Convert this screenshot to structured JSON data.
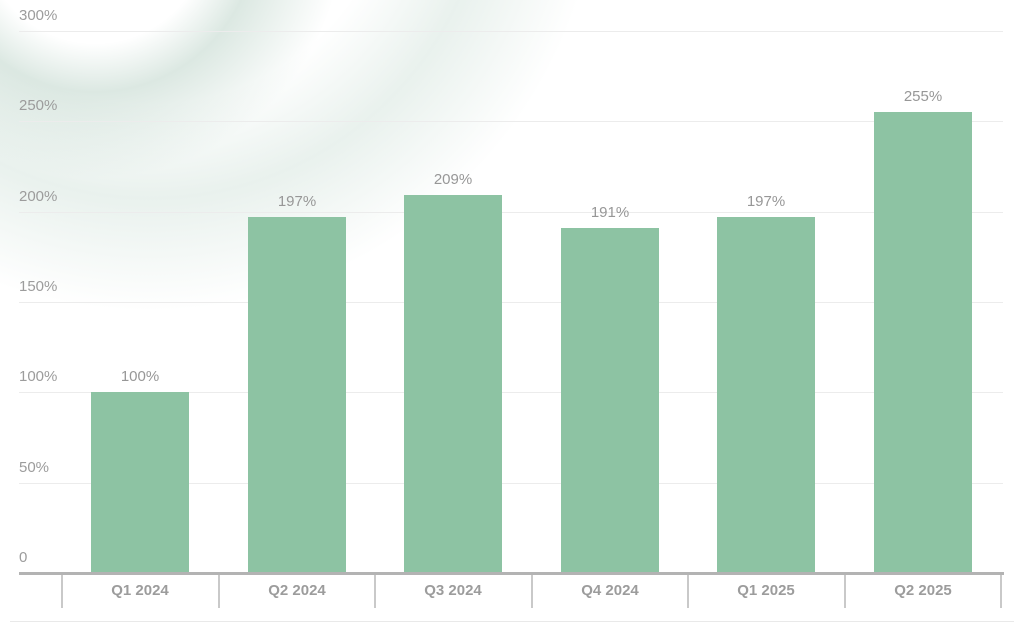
{
  "chart_data": {
    "type": "bar",
    "title": "",
    "xlabel": "",
    "ylabel": "",
    "categories": [
      "Q1 2024",
      "Q2 2024",
      "Q3 2024",
      "Q4 2024",
      "Q1 2025",
      "Q2 2025"
    ],
    "values": [
      100,
      197,
      209,
      191,
      197,
      255
    ],
    "bar_labels": [
      "100%",
      "197%",
      "209%",
      "191%",
      "197%",
      "255%"
    ],
    "y_ticks": [
      {
        "value": 0,
        "label": "0"
      },
      {
        "value": 50,
        "label": "50%"
      },
      {
        "value": 100,
        "label": "100%"
      },
      {
        "value": 150,
        "label": "150%"
      },
      {
        "value": 200,
        "label": "200%"
      },
      {
        "value": 250,
        "label": "250%"
      },
      {
        "value": 300,
        "label": "300%"
      }
    ],
    "ylim": [
      0,
      300
    ],
    "grid": true,
    "legend": "none"
  },
  "colors": {
    "bar": "#8dc3a3",
    "axis_line": "#b3b3b3",
    "tick": "#c9c9c9",
    "gridline": "#ececec",
    "axis_label_text": "#9c9c9c",
    "value_label_text": "#979797",
    "separator": "#e9e9e9",
    "background": "#ffffff",
    "decoration_tint": "#a7c6b6"
  }
}
